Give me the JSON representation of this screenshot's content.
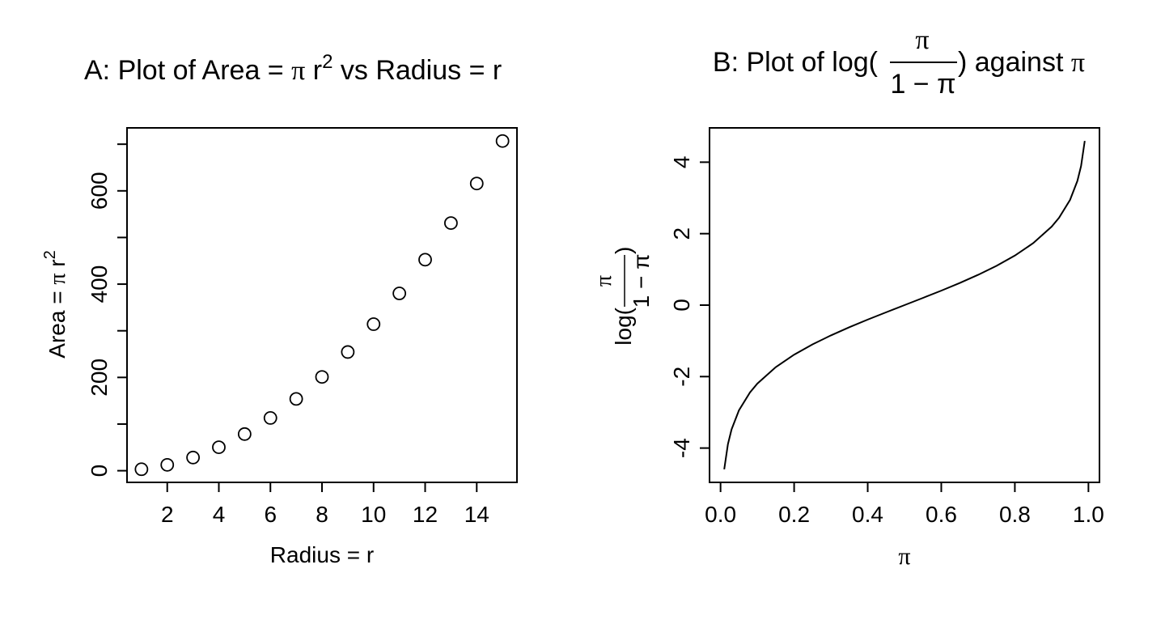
{
  "chart_data": [
    {
      "type": "scatter",
      "title": {
        "prefix": "A: Plot of Area = ",
        "pi": "π",
        "mid": " r",
        "sup": "2",
        "suffix": " vs Radius = r"
      },
      "xlabel": "Radius = r",
      "ylabel": {
        "text": "Area = ",
        "pi": "π",
        "r": " r",
        "sup": "2"
      },
      "x": [
        1,
        2,
        3,
        4,
        5,
        6,
        7,
        8,
        9,
        10,
        11,
        12,
        13,
        14,
        15
      ],
      "y": [
        3.14,
        12.57,
        28.27,
        50.27,
        78.54,
        113.1,
        153.94,
        201.06,
        254.47,
        314.16,
        380.13,
        452.39,
        530.93,
        615.75,
        706.86
      ],
      "xlim": [
        0.44,
        15.56
      ],
      "ylim": [
        -25,
        735
      ],
      "xticks": [
        "2",
        "4",
        "6",
        "8",
        "10",
        "12",
        "14"
      ],
      "xtick_values": [
        2,
        4,
        6,
        8,
        10,
        12,
        14
      ],
      "yticks": [
        "0",
        "200",
        "400",
        "600"
      ],
      "ytick_values": [
        0,
        200,
        400,
        600
      ],
      "yminor": [
        100,
        300,
        500,
        700
      ],
      "marker": "open-circle",
      "grid": false
    },
    {
      "type": "line",
      "title": {
        "prefix": "B: Plot of log(",
        "num": "π",
        "den": "1 − π",
        "suffix": ") against ",
        "pi": "π"
      },
      "xlabel": "π",
      "ylabel": {
        "text": "log(",
        "num": "π",
        "den": "1 − π",
        "close": ")"
      },
      "function": "log(x/(1-x))",
      "x": [
        0.01,
        0.02,
        0.03,
        0.05,
        0.08,
        0.1,
        0.15,
        0.2,
        0.25,
        0.3,
        0.35,
        0.4,
        0.45,
        0.5,
        0.55,
        0.6,
        0.65,
        0.7,
        0.75,
        0.8,
        0.85,
        0.9,
        0.92,
        0.95,
        0.97,
        0.98,
        0.99
      ],
      "y": [
        -4.595,
        -3.892,
        -3.476,
        -2.944,
        -2.442,
        -2.197,
        -1.735,
        -1.386,
        -1.099,
        -0.847,
        -0.619,
        -0.405,
        -0.201,
        0.0,
        0.201,
        0.405,
        0.619,
        0.847,
        1.099,
        1.386,
        1.735,
        2.197,
        2.442,
        2.944,
        3.476,
        3.892,
        4.595
      ],
      "xlim": [
        -0.03,
        1.03
      ],
      "ylim": [
        -4.96,
        4.96
      ],
      "xticks": [
        "0.0",
        "0.2",
        "0.4",
        "0.6",
        "0.8",
        "1.0"
      ],
      "xtick_values": [
        0,
        0.2,
        0.4,
        0.6,
        0.8,
        1.0
      ],
      "yticks": [
        "-4",
        "-2",
        "0",
        "2",
        "4"
      ],
      "ytick_values": [
        -4,
        -2,
        0,
        2,
        4
      ],
      "grid": false
    }
  ]
}
